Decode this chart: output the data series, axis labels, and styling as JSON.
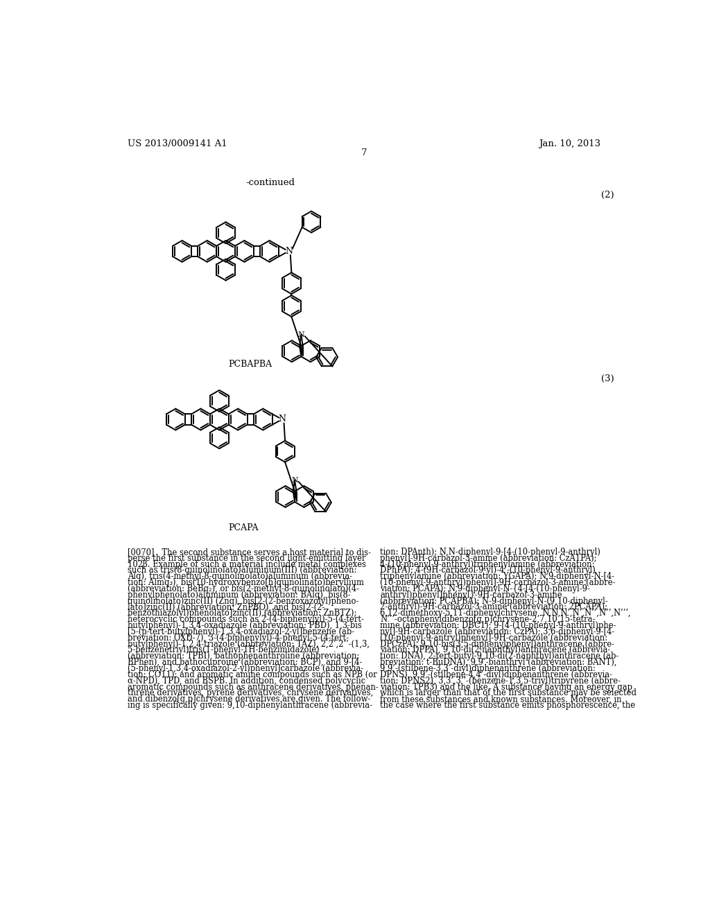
{
  "page_number": "7",
  "patent_number": "US 2013/0009141 A1",
  "patent_date": "Jan. 10, 2013",
  "continued_label": "-continued",
  "compound2_label": "(2)",
  "compound3_label": "(3)",
  "compound2_name": "PCBAPBA",
  "compound3_name": "PCAPA",
  "paragraph_tag": "[0070]",
  "left_column_text": "The second substance serves a host material to dis-\nperse the first substance in the second light-emitting layer\n102β. Example of such a material include metal complexes\nsuch as tris(8-quinolinolato)aluminum(III) (abbreviation:\nAlq), tris(4-methyl-8-quinolinolato)aluminum (abbrevia-\ntion: Almq₃), bis(10-hydroxybenzo[h]quinolinato)beryllium\n(abbreviation: BeBq₂), or bis(2-methyl-8-quinolinolato)(4-\nphenylphenolato)aluminum (abbreviation: BAlq), bis(8-\nquinolinolato)zinc(II) (Znq), bis[2-(2-benzoxazolyl)pheno-\nlato]zinc(II) (abbreviation: ZnPBO), and bis[2-(2-\nbenzothiazolyl)phenolato]zinc(II) (abbreviation: ZnBTZ);\nheterocyclic compounds such as 2-(4-biphenylyl)-5-(4-tert-\nbutylphenyl)-1,3,4-oxadiazole (abbreviation: PBD), 1,3-bis\n[5-(p-tert-butylphenyl)-1,3,4-oxadiazol-2-yl]benzene (ab-\nbreviation: OXD-7), 3-(4-biphenylyl)-4-phenyl-5-(4-tert-\nbutylphenyl)-1,2,4-triazole (abbreviation: TAZ), 2,2’,2’’-(1,3,\n5-benzenetriyl)tris(1-phenyl-1H-benzimidazole)\n(abbreviation: TPBI), bathophenanthroline (abbreviation:\nBPhen), and bathocuproine (abbreviation: BCP), and 9-[4-\n(5-phenyl-1,3,4-oxadiazol-2-yl)phenyl]carbazole (abbrevia-\ntion: CO11); and aromatic amine compounds such as NPB (or\nα-NPD), TPD, and BSPB. In addition, condensed polycyclic\naromatic compounds such as anthracene derivatives, phenan-\nthrene derivatives, pyrene derivatives, chrysene derivatives,\nand dibenzo[g,p]chrysene derivatives are given. The follow-\ning is specifically given: 9,10-diphenylanthracene (abbrevia-",
  "right_column_text": "tion: DPAnth); N,N-diphenyl-9-[4-(10-phenyl-9-anthryl)\nphenyl]-9H-carbazol-3-amine (abbreviation: CzA1PA);\n4-(10-phenyl-9-anthryl)triphenylamine (abbreviation:\nDPhPA); 4-(9H-carbazol-9-yl)-4’-(10-phenyl-9-anthryl)\ntriphenylamine (abbreviation: YGAPA); N,9-diphenyl-N-[4-\n(10-phenyl-9-anthryl)phenyl]-9H-carbazol-3-amine (abbre-\nviation: PCAPA); N,9-diphenyl-N-{4-[4-(10-phenyl-9-\nanthryl)phenyl]phenyl}-9H-carbazol-3-amine\n(abbreviation: PCAPBA); N-9-diphenyl-N-(9,10-diphenyl-\n2-anthryl)-9H-carbazol-3-amine (abbreviation: 2PCAPA);\n6,12-dimethoxy-5,11-diphenylchrysene, N,N,N’,N’,N’’,N’’,N’’’,\nN’’’-octaphenyldibenzo[g,p]chrysene-2,7,10,15-tetra-\nmine (abbreviation: DBC1); 9-[4-(10-phenyl-9-anthryl)phe-\nnyl]-9H-carbazole (abbreviation: CzPA); 3,6-diphenyl-9-[4-\n(10-phenyl-9-antryl)phenyl]-9H-carbazole (abbreviation:\nDPCzPA), 9,10-bis(3,5-diphenylphenyl)anthracene (abbre-\nviation: DPPA), 9,10-di(2-naphthyl)anthracene (abbrevia-\ntion: DNA), 2-tert-butyl-9,10-di(2-naphthyl)anthracene (ab-\nbreviation: t-BuDNA), 9,9’-bianthryl (abbreviation: BANT),\n9,9’-(stilbene-3,3’-diyl)diphenanthrene (abbreviation:\nDPNS), 9,9’-(stilbene-4,4’-diyl)diphenanthrene (abbrevia-\ntion: DPNS2), 3,3’,3’’-(benzene-1,3,5-triyl)tripyrene (abbre-\nviation: TPB3) and the like. A substance having an energy gap\nwhich is larger than that of the first substance may be selected\nfrom these substances and known substances. Moreover, in\nthe case where the first substance emits phosphorescence, the",
  "bg_color": "#ffffff",
  "text_color": "#000000",
  "font_size_body": 8.3,
  "font_size_header": 9.5,
  "font_size_label": 9.5,
  "font_size_chem_label": 9.0
}
